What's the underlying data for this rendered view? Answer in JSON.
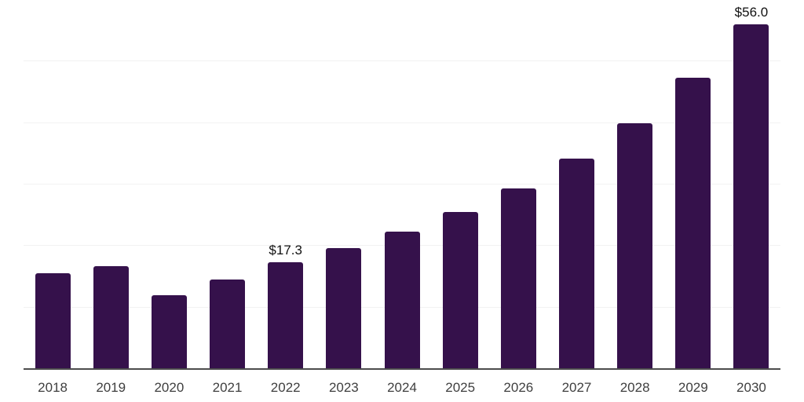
{
  "chart_data": {
    "type": "bar",
    "title": "",
    "xlabel": "",
    "ylabel": "",
    "categories": [
      "2018",
      "2019",
      "2020",
      "2021",
      "2022",
      "2023",
      "2024",
      "2025",
      "2026",
      "2027",
      "2028",
      "2029",
      "2030"
    ],
    "values": [
      15.6,
      16.7,
      12.0,
      14.5,
      17.3,
      19.6,
      22.3,
      25.5,
      29.3,
      34.2,
      39.9,
      47.3,
      56.0
    ],
    "data_labels": {
      "2022": "$17.3",
      "2030": "$56.0"
    },
    "ylim": [
      0,
      60
    ],
    "gridline_step": 10,
    "grid": "horizontal, light gray, no y tick labels",
    "legend": "none",
    "colors": {
      "bar": "#35114B",
      "axis_line": "#4d4d4d",
      "gridline": "#f2f2f2",
      "value_label": "#111111",
      "tick_label": "#3f3f3f",
      "background": "#ffffff"
    }
  }
}
